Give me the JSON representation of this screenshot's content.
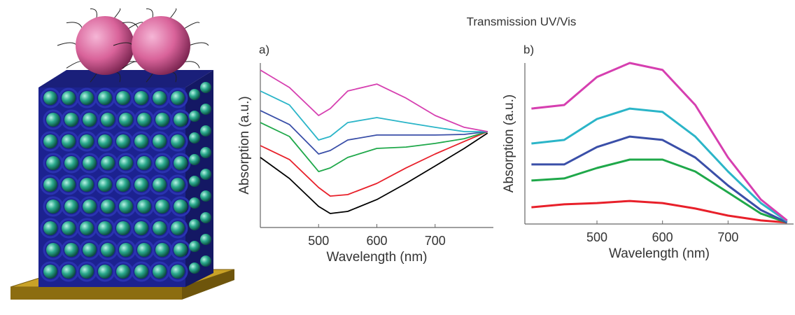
{
  "title": "Transmission UV/Vis",
  "chart_data": [
    {
      "type": "line",
      "label": "a)",
      "xlabel": "Wavelength (nm)",
      "ylabel": "Absorption (a.u.)",
      "x": [
        400,
        450,
        500,
        520,
        550,
        600,
        650,
        700,
        750,
        790
      ],
      "xlim": [
        400,
        800
      ],
      "xticks": [
        500,
        600,
        700
      ],
      "ylim": [
        0,
        1
      ],
      "series": [
        {
          "color": "#000000",
          "values": [
            0.426,
            0.298,
            0.128,
            0.085,
            0.098,
            0.17,
            0.268,
            0.374,
            0.481,
            0.574
          ]
        },
        {
          "color": "#e8202a",
          "values": [
            0.498,
            0.413,
            0.243,
            0.191,
            0.2,
            0.268,
            0.362,
            0.447,
            0.523,
            0.583
          ]
        },
        {
          "color": "#1fa84a",
          "values": [
            0.638,
            0.553,
            0.34,
            0.362,
            0.426,
            0.481,
            0.489,
            0.511,
            0.54,
            0.583
          ]
        },
        {
          "color": "#3a4fa8",
          "values": [
            0.711,
            0.626,
            0.447,
            0.468,
            0.532,
            0.562,
            0.562,
            0.562,
            0.566,
            0.583
          ]
        },
        {
          "color": "#2bb5c8",
          "values": [
            0.83,
            0.745,
            0.532,
            0.553,
            0.638,
            0.668,
            0.638,
            0.609,
            0.583,
            0.583
          ]
        },
        {
          "color": "#d63fb0",
          "values": [
            0.957,
            0.851,
            0.681,
            0.723,
            0.83,
            0.872,
            0.787,
            0.681,
            0.609,
            0.583
          ]
        }
      ]
    },
    {
      "type": "line",
      "label": "b)",
      "xlabel": "Wavelength (nm)",
      "ylabel": "Absorption (a.u.)",
      "x": [
        400,
        450,
        500,
        550,
        600,
        650,
        700,
        750,
        790
      ],
      "xlim": [
        390,
        800
      ],
      "xticks": [
        500,
        600,
        700
      ],
      "ylim": [
        0,
        1
      ],
      "series": [
        {
          "color": "#e8202a",
          "values": [
            0.104,
            0.122,
            0.13,
            0.143,
            0.13,
            0.096,
            0.052,
            0.022,
            0.009
          ]
        },
        {
          "color": "#1fa84a",
          "values": [
            0.27,
            0.283,
            0.348,
            0.4,
            0.4,
            0.326,
            0.196,
            0.065,
            0.009
          ]
        },
        {
          "color": "#3a4fa8",
          "values": [
            0.37,
            0.37,
            0.478,
            0.543,
            0.522,
            0.413,
            0.239,
            0.087,
            0.009
          ]
        },
        {
          "color": "#2bb5c8",
          "values": [
            0.5,
            0.522,
            0.652,
            0.717,
            0.696,
            0.543,
            0.326,
            0.13,
            0.017
          ]
        },
        {
          "color": "#d63fb0",
          "values": [
            0.717,
            0.739,
            0.913,
            1.0,
            0.957,
            0.739,
            0.413,
            0.152,
            0.022
          ]
        }
      ]
    }
  ]
}
